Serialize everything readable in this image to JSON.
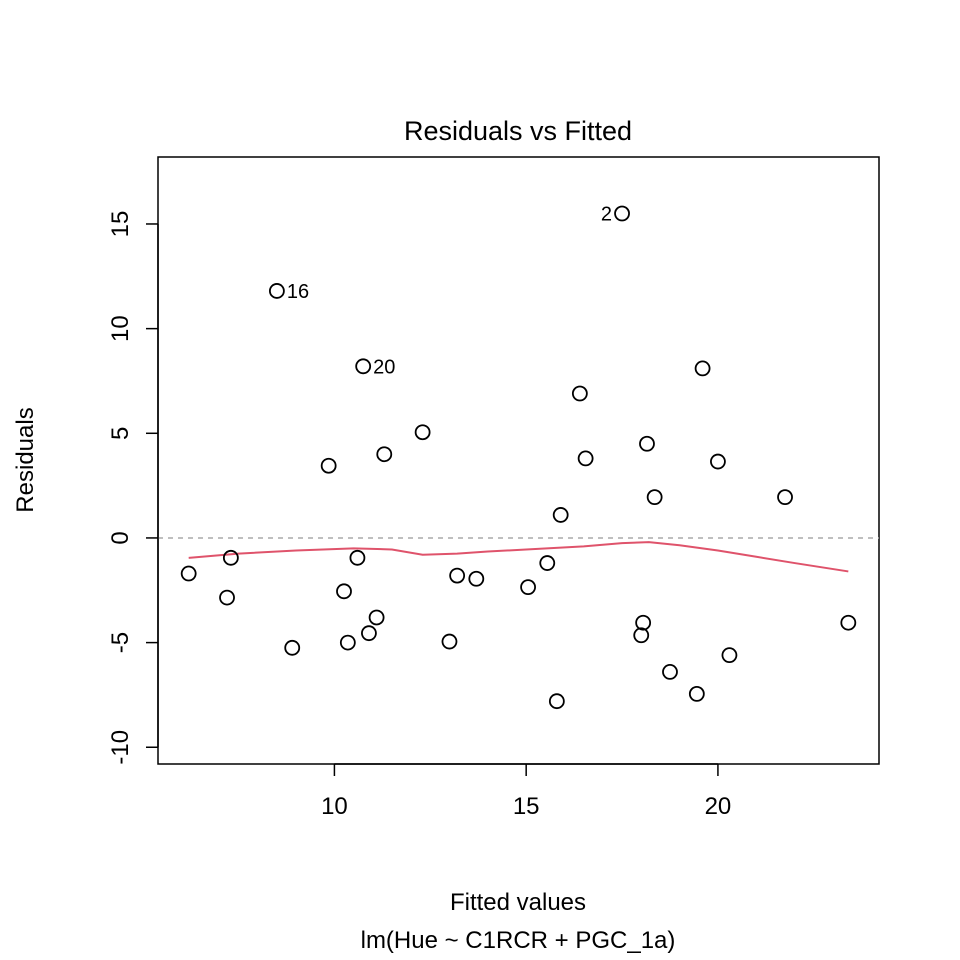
{
  "chart_data": {
    "type": "scatter",
    "title": "Residuals vs Fitted",
    "xlabel": "Fitted values",
    "subtitle": "lm(Hue ~ C1RCR + PGC_1a)",
    "ylabel": "Residuals",
    "xlim": [
      5.4,
      24.2
    ],
    "ylim": [
      -10.8,
      18.2
    ],
    "xticks": [
      10,
      15,
      20
    ],
    "yticks": [
      -10,
      -5,
      0,
      5,
      10,
      15
    ],
    "reference_line": 0,
    "reference_line_color": "#AAAAAA",
    "points": [
      {
        "x": 6.2,
        "y": -1.7
      },
      {
        "x": 7.2,
        "y": -2.85
      },
      {
        "x": 7.3,
        "y": -0.95
      },
      {
        "x": 8.5,
        "y": 11.8,
        "label": "16"
      },
      {
        "x": 8.9,
        "y": -5.25
      },
      {
        "x": 9.85,
        "y": 3.45
      },
      {
        "x": 10.25,
        "y": -2.55
      },
      {
        "x": 10.35,
        "y": -5.0
      },
      {
        "x": 10.6,
        "y": -0.95
      },
      {
        "x": 10.75,
        "y": 8.2,
        "label": "20"
      },
      {
        "x": 10.9,
        "y": -4.55
      },
      {
        "x": 11.1,
        "y": -3.8
      },
      {
        "x": 11.3,
        "y": 4.0
      },
      {
        "x": 12.3,
        "y": 5.05
      },
      {
        "x": 13.0,
        "y": -4.95
      },
      {
        "x": 13.2,
        "y": -1.8
      },
      {
        "x": 13.7,
        "y": -1.95
      },
      {
        "x": 15.05,
        "y": -2.35
      },
      {
        "x": 15.55,
        "y": -1.2
      },
      {
        "x": 15.8,
        "y": -7.8
      },
      {
        "x": 15.9,
        "y": 1.1
      },
      {
        "x": 16.4,
        "y": 6.9
      },
      {
        "x": 16.55,
        "y": 3.8
      },
      {
        "x": 17.5,
        "y": 15.5,
        "label": "2"
      },
      {
        "x": 18.0,
        "y": -4.65
      },
      {
        "x": 18.05,
        "y": -4.05
      },
      {
        "x": 18.15,
        "y": 4.5
      },
      {
        "x": 18.35,
        "y": 1.95
      },
      {
        "x": 18.75,
        "y": -6.4
      },
      {
        "x": 19.45,
        "y": -7.45
      },
      {
        "x": 19.6,
        "y": 8.1
      },
      {
        "x": 20.0,
        "y": 3.65
      },
      {
        "x": 20.3,
        "y": -5.6
      },
      {
        "x": 21.75,
        "y": 1.95
      },
      {
        "x": 23.4,
        "y": -4.05
      }
    ],
    "smoother": {
      "color": "#DF536B",
      "x": [
        6.2,
        7.5,
        9.0,
        10.5,
        11.5,
        12.3,
        13.2,
        14.0,
        15.0,
        16.5,
        17.5,
        18.2,
        19.0,
        20.0,
        21.0,
        22.0,
        23.4
      ],
      "y": [
        -0.95,
        -0.75,
        -0.6,
        -0.5,
        -0.55,
        -0.8,
        -0.75,
        -0.65,
        -0.55,
        -0.4,
        -0.25,
        -0.2,
        -0.35,
        -0.6,
        -0.9,
        -1.2,
        -1.6
      ]
    }
  }
}
